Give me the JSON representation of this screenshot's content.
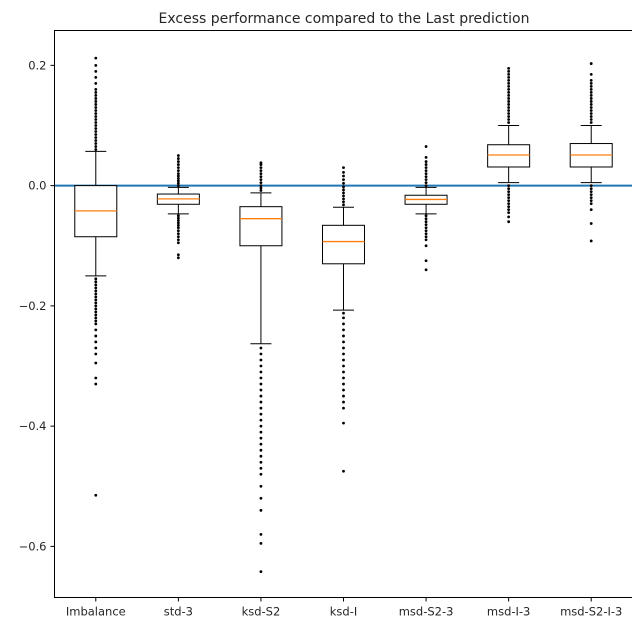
{
  "chart_data": {
    "type": "box",
    "title": "Excess performance compared to the Last prediction",
    "xlabel": "",
    "ylabel": "",
    "ylim": [
      -0.685,
      0.258
    ],
    "yticks": [
      0.2,
      0.0,
      -0.2,
      -0.4,
      -0.6
    ],
    "ytick_labels": [
      "0.2",
      "0.0",
      "−0.2",
      "−0.4",
      "−0.6"
    ],
    "reference_line": {
      "y": 0.0,
      "color": "#1f77b4"
    },
    "colors": {
      "box": "#000000",
      "median": "#ff7f0e",
      "flier": "#000000"
    },
    "categories": [
      "Imbalance",
      "std-3",
      "ksd-S2",
      "ksd-I",
      "msd-S2-3",
      "msd-I-3",
      "msd-S2-I-3"
    ],
    "boxes": [
      {
        "label": "Imbalance",
        "whisker_low": -0.15,
        "q1": -0.085,
        "median": -0.042,
        "q3": 0.0,
        "whisker_high": 0.057,
        "outliers_high": [
          0.06,
          0.065,
          0.07,
          0.075,
          0.08,
          0.085,
          0.09,
          0.095,
          0.1,
          0.105,
          0.11,
          0.115,
          0.12,
          0.125,
          0.13,
          0.135,
          0.14,
          0.145,
          0.15,
          0.155,
          0.16,
          0.17,
          0.18,
          0.19,
          0.2,
          0.212
        ],
        "outliers_low": [
          -0.155,
          -0.16,
          -0.165,
          -0.17,
          -0.175,
          -0.18,
          -0.185,
          -0.19,
          -0.195,
          -0.2,
          -0.205,
          -0.21,
          -0.215,
          -0.22,
          -0.225,
          -0.23,
          -0.24,
          -0.25,
          -0.26,
          -0.27,
          -0.28,
          -0.295,
          -0.32,
          -0.33,
          -0.515
        ]
      },
      {
        "label": "std-3",
        "whisker_low": -0.047,
        "q1": -0.031,
        "median": -0.022,
        "q3": -0.014,
        "whisker_high": -0.003,
        "outliers_high": [
          0.0,
          0.004,
          0.008,
          0.012,
          0.016,
          0.02,
          0.025,
          0.03,
          0.035,
          0.04,
          0.045,
          0.05
        ],
        "outliers_low": [
          -0.05,
          -0.054,
          -0.058,
          -0.062,
          -0.066,
          -0.07,
          -0.075,
          -0.08,
          -0.085,
          -0.09,
          -0.095,
          -0.115,
          -0.12
        ]
      },
      {
        "label": "ksd-S2",
        "whisker_low": -0.263,
        "q1": -0.1,
        "median": -0.055,
        "q3": -0.035,
        "whisker_high": -0.012,
        "outliers_high": [
          -0.008,
          -0.004,
          0.0,
          0.005,
          0.01,
          0.015,
          0.02,
          0.025,
          0.03,
          0.035,
          0.038
        ],
        "outliers_low": [
          -0.27,
          -0.28,
          -0.29,
          -0.3,
          -0.31,
          -0.32,
          -0.33,
          -0.34,
          -0.35,
          -0.36,
          -0.37,
          -0.38,
          -0.39,
          -0.4,
          -0.41,
          -0.42,
          -0.43,
          -0.44,
          -0.45,
          -0.46,
          -0.47,
          -0.48,
          -0.5,
          -0.52,
          -0.54,
          -0.58,
          -0.595,
          -0.642
        ]
      },
      {
        "label": "ksd-I",
        "whisker_low": -0.207,
        "q1": -0.13,
        "median": -0.093,
        "q3": -0.066,
        "whisker_high": -0.036,
        "outliers_high": [
          -0.032,
          -0.027,
          -0.022,
          -0.017,
          -0.012,
          -0.007,
          -0.002,
          0.004,
          0.01,
          0.016,
          0.022,
          0.03
        ],
        "outliers_low": [
          -0.212,
          -0.22,
          -0.23,
          -0.24,
          -0.25,
          -0.26,
          -0.27,
          -0.28,
          -0.29,
          -0.3,
          -0.31,
          -0.32,
          -0.33,
          -0.34,
          -0.35,
          -0.36,
          -0.37,
          -0.395,
          -0.475
        ]
      },
      {
        "label": "msd-S2-3",
        "whisker_low": -0.047,
        "q1": -0.031,
        "median": -0.023,
        "q3": -0.016,
        "whisker_high": -0.003,
        "outliers_high": [
          0.0,
          0.005,
          0.01,
          0.015,
          0.02,
          0.025,
          0.03,
          0.035,
          0.04,
          0.047,
          0.065
        ],
        "outliers_low": [
          -0.05,
          -0.055,
          -0.06,
          -0.065,
          -0.07,
          -0.075,
          -0.08,
          -0.085,
          -0.09,
          -0.1,
          -0.125,
          -0.14
        ]
      },
      {
        "label": "msd-I-3",
        "whisker_low": 0.005,
        "q1": 0.031,
        "median": 0.051,
        "q3": 0.068,
        "whisker_high": 0.1,
        "outliers_high": [
          0.105,
          0.11,
          0.115,
          0.12,
          0.125,
          0.13,
          0.135,
          0.14,
          0.145,
          0.15,
          0.155,
          0.16,
          0.165,
          0.17,
          0.175,
          0.18,
          0.185,
          0.19,
          0.195
        ],
        "outliers_low": [
          0.0,
          -0.005,
          -0.01,
          -0.015,
          -0.02,
          -0.025,
          -0.03,
          -0.035,
          -0.04,
          -0.045,
          -0.052,
          -0.06
        ]
      },
      {
        "label": "msd-S2-I-3",
        "whisker_low": 0.005,
        "q1": 0.031,
        "median": 0.051,
        "q3": 0.07,
        "whisker_high": 0.1,
        "outliers_high": [
          0.105,
          0.11,
          0.115,
          0.12,
          0.125,
          0.13,
          0.135,
          0.14,
          0.145,
          0.15,
          0.155,
          0.16,
          0.165,
          0.17,
          0.175,
          0.185,
          0.203
        ],
        "outliers_low": [
          0.0,
          -0.005,
          -0.01,
          -0.015,
          -0.02,
          -0.025,
          -0.03,
          -0.04,
          -0.063,
          -0.092
        ]
      }
    ]
  }
}
